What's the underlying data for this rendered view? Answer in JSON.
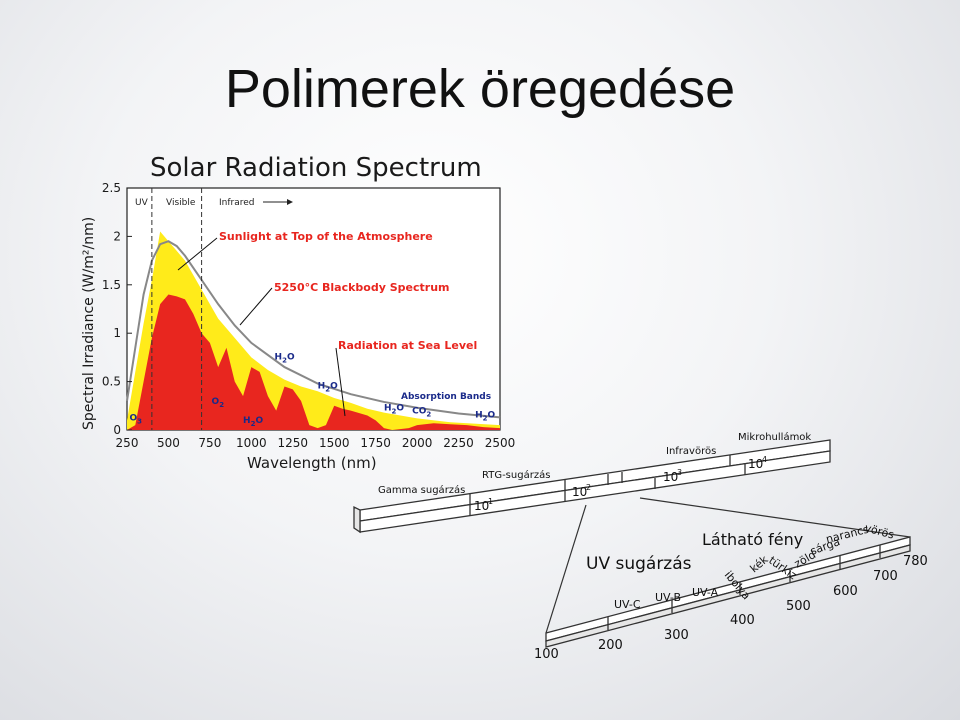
{
  "slide": {
    "title": "Polimerek öregedése"
  },
  "chart_data": {
    "type": "area",
    "title": "Solar Radiation Spectrum",
    "xlabel": "Wavelength (nm)",
    "ylabel": "Spectral Irradiance (W/m²/nm)",
    "xlim": [
      250,
      2500
    ],
    "ylim": [
      0,
      2.5
    ],
    "x_ticks": [
      "250",
      "500",
      "750",
      "1000",
      "1250",
      "1500",
      "1750",
      "2000",
      "2250",
      "2500"
    ],
    "y_ticks": [
      "0",
      "0.5",
      "1",
      "1.5",
      "2",
      "2.5"
    ],
    "regions": [
      "UV",
      "Visible",
      "Infrared"
    ],
    "region_boundaries": [
      400,
      700
    ],
    "series": [
      {
        "name": "Sunlight at Top of the Atmosphere",
        "color": "#ffeb1a",
        "x": [
          250,
          300,
          350,
          400,
          450,
          500,
          550,
          600,
          700,
          800,
          900,
          1000,
          1100,
          1200,
          1300,
          1400,
          1500,
          1600,
          1700,
          1800,
          2000,
          2200,
          2500
        ],
        "values": [
          0.1,
          0.6,
          1.1,
          1.55,
          2.05,
          1.95,
          1.85,
          1.75,
          1.45,
          1.15,
          0.95,
          0.75,
          0.62,
          0.52,
          0.45,
          0.4,
          0.33,
          0.28,
          0.22,
          0.18,
          0.12,
          0.08,
          0.05
        ]
      },
      {
        "name": "5250°C Blackbody Spectrum",
        "color": "#888888",
        "x": [
          250,
          300,
          350,
          400,
          450,
          500,
          550,
          600,
          700,
          800,
          900,
          1000,
          1200,
          1400,
          1600,
          1800,
          2000,
          2250,
          2500
        ],
        "values": [
          0.3,
          0.85,
          1.4,
          1.75,
          1.92,
          1.95,
          1.9,
          1.8,
          1.55,
          1.3,
          1.08,
          0.9,
          0.65,
          0.48,
          0.37,
          0.29,
          0.23,
          0.17,
          0.13
        ]
      },
      {
        "name": "Radiation at Sea Level",
        "color": "#e8261f",
        "x": [
          250,
          300,
          350,
          400,
          450,
          500,
          550,
          600,
          650,
          700,
          750,
          800,
          850,
          900,
          950,
          1000,
          1050,
          1100,
          1150,
          1200,
          1250,
          1300,
          1350,
          1400,
          1450,
          1500,
          1550,
          1600,
          1700,
          1750,
          1800,
          1850,
          1950,
          2000,
          2100,
          2200,
          2300,
          2400,
          2500
        ],
        "values": [
          0,
          0.05,
          0.5,
          0.95,
          1.3,
          1.4,
          1.38,
          1.35,
          1.2,
          1.0,
          0.9,
          0.65,
          0.85,
          0.5,
          0.35,
          0.65,
          0.6,
          0.35,
          0.2,
          0.45,
          0.42,
          0.3,
          0.05,
          0.02,
          0.05,
          0.25,
          0.22,
          0.2,
          0.15,
          0.1,
          0.02,
          0.0,
          0.02,
          0.05,
          0.07,
          0.06,
          0.05,
          0.03,
          0.02
        ]
      }
    ],
    "annotations": [
      {
        "text": "Sunlight at Top of the Atmosphere",
        "color": "#e8261f",
        "x": 900,
        "y": 1.98
      },
      {
        "text": "5250°C Blackbody Spectrum",
        "color": "#e8261f",
        "x": 1150,
        "y": 1.49
      },
      {
        "text": "Radiation at Sea Level",
        "color": "#e8261f",
        "x": 1500,
        "y": 0.88
      },
      {
        "text": "Absorption Bands",
        "color": "#1a2a8a",
        "x": 1630,
        "y": 0.36
      }
    ],
    "absorption_labels": [
      {
        "mol": "O",
        "sub": "3",
        "x": 265,
        "y": 0.1
      },
      {
        "mol": "O",
        "sub": "2",
        "x": 760,
        "y": 0.27
      },
      {
        "mol": "H",
        "sub": "2",
        "tail": "O",
        "x": 950,
        "y": 0.07
      },
      {
        "mol": "H",
        "sub": "2",
        "tail": "O",
        "x": 1140,
        "y": 0.73
      },
      {
        "mol": "H",
        "sub": "2",
        "tail": "O",
        "x": 1400,
        "y": 0.43
      },
      {
        "mol": "H",
        "sub": "2",
        "tail": "O",
        "x": 1800,
        "y": 0.2
      },
      {
        "mol": "CO",
        "sub": "2",
        "x": 1970,
        "y": 0.17
      },
      {
        "mol": "H",
        "sub": "2",
        "tail": "O",
        "x": 2350,
        "y": 0.13
      }
    ]
  },
  "em_scale": {
    "top_bands": [
      "Gamma sugárzás",
      "RTG-sugárzás",
      "Infravörös",
      "Mikrohullámok"
    ],
    "top_ticks": [
      {
        "base": "10",
        "exp": "1"
      },
      {
        "base": "10",
        "exp": "2"
      },
      {
        "base": "10",
        "exp": "3"
      },
      {
        "base": "10",
        "exp": "4"
      }
    ],
    "uv_label": "UV sugárzás",
    "visible_label": "Látható fény",
    "uv_bands": [
      "UV-C",
      "UV-B",
      "UV-A"
    ],
    "colors": [
      "ibolya",
      "kék",
      "türkiz",
      "zöld",
      "sárga",
      "narancs",
      "vörös"
    ],
    "bottom_ticks": [
      "100",
      "200",
      "300",
      "400",
      "500",
      "600",
      "700",
      "780"
    ]
  }
}
